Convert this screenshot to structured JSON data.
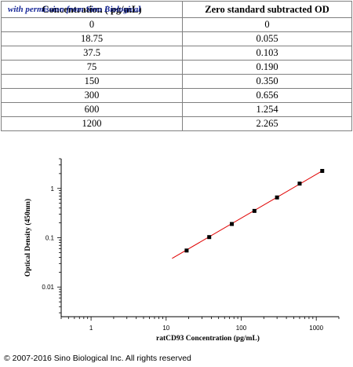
{
  "table": {
    "headers": [
      "Concentration ( pg/mL)",
      "Zero standard subtracted OD"
    ],
    "watermark": "with permission from Sino Biological",
    "rows": [
      [
        "0",
        "0"
      ],
      [
        "18.75",
        "0.055"
      ],
      [
        "37.5",
        "0.103"
      ],
      [
        "75",
        "0.190"
      ],
      [
        "150",
        "0.350"
      ],
      [
        "300",
        "0.656"
      ],
      [
        "600",
        "1.254"
      ],
      [
        "1200",
        "2.265"
      ]
    ]
  },
  "chart_data": {
    "type": "scatter",
    "xlabel": "ratCD93 Concentration (pg/mL)",
    "ylabel": "Optical Density (450nm)",
    "x_scale": "log",
    "y_scale": "log",
    "xlim": [
      0.4,
      2000
    ],
    "ylim": [
      0.0025,
      4
    ],
    "x_ticks": [
      1,
      10,
      100,
      1000
    ],
    "x_tick_labels": [
      "1",
      "10",
      "100",
      "1000"
    ],
    "y_ticks": [
      0.01,
      0.1,
      1
    ],
    "y_tick_labels": [
      "0.01",
      "0.1",
      "1"
    ],
    "grid": false,
    "series": [
      {
        "x": [
          18.75,
          37.5,
          75,
          150,
          300,
          600,
          1200
        ],
        "y": [
          0.055,
          0.103,
          0.19,
          0.35,
          0.656,
          1.254,
          2.265
        ],
        "marker": "square",
        "color": "#000000"
      }
    ],
    "fit_line": {
      "x": [
        12,
        1200
      ],
      "y": [
        0.038,
        2.265
      ],
      "color": "#e00000"
    }
  },
  "copyright": "© 2007-2016 Sino Biological Inc. All rights reserved"
}
